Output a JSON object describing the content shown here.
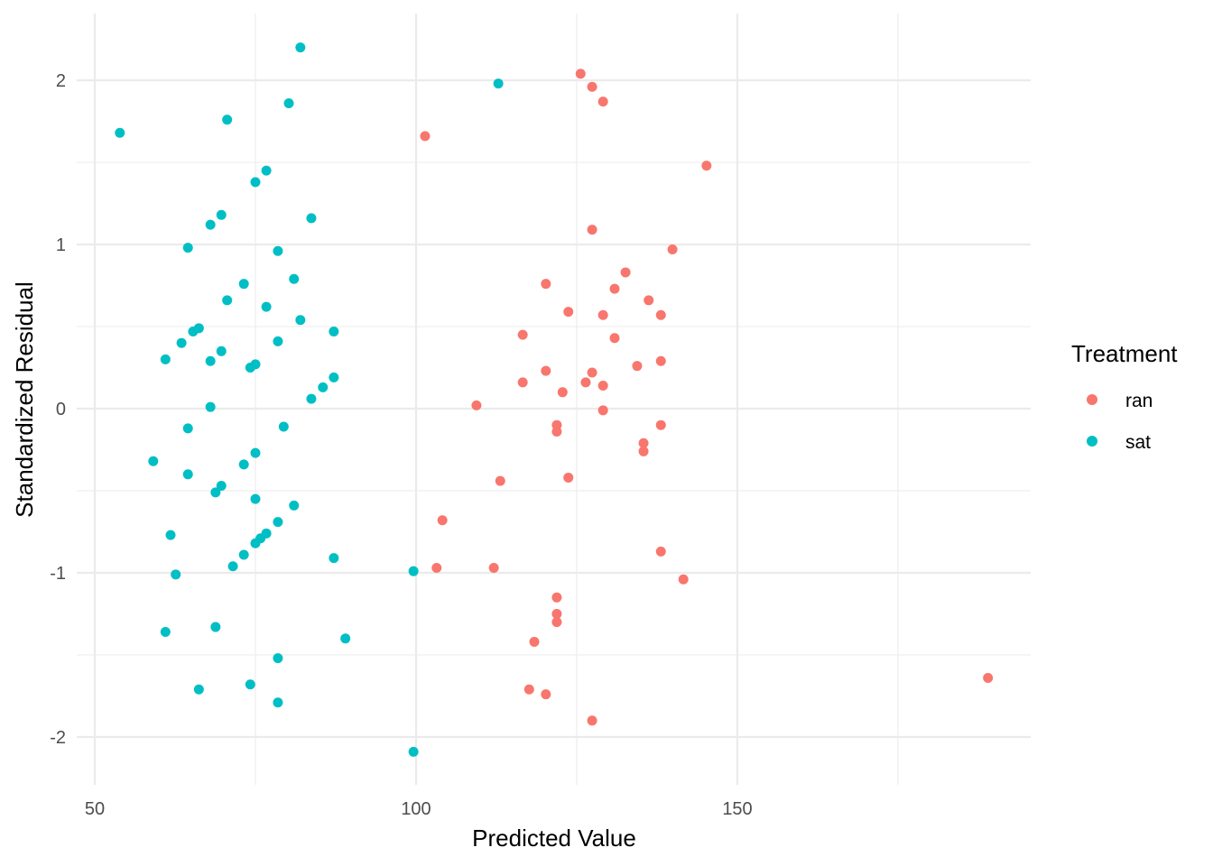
{
  "chart_data": {
    "type": "scatter",
    "title": "",
    "xlabel": "Predicted Value",
    "ylabel": "Standardized Residual",
    "xlim": [
      46,
      194.5
    ],
    "ylim": [
      -2.3,
      2.4
    ],
    "x_ticks": [
      50,
      100,
      150
    ],
    "x_tick_labels": [
      "50",
      "100",
      "150"
    ],
    "y_ticks": [
      -2,
      -1,
      0,
      1,
      2
    ],
    "y_tick_labels": [
      "-2",
      "-1",
      "0",
      "1",
      "2"
    ],
    "grid": true,
    "legend": {
      "title": "Treatment",
      "placement": "right"
    },
    "series": [
      {
        "name": "ran",
        "color": "#F8766D",
        "points": [
          [
            125.6,
            2.04
          ],
          [
            127.4,
            1.96
          ],
          [
            129.1,
            1.87
          ],
          [
            101.4,
            1.66
          ],
          [
            145.2,
            1.48
          ],
          [
            127.4,
            1.09
          ],
          [
            139.9,
            0.97
          ],
          [
            132.6,
            0.83
          ],
          [
            120.2,
            0.76
          ],
          [
            130.9,
            0.73
          ],
          [
            136.2,
            0.66
          ],
          [
            123.7,
            0.59
          ],
          [
            129.1,
            0.57
          ],
          [
            138.1,
            0.57
          ],
          [
            116.6,
            0.45
          ],
          [
            130.9,
            0.43
          ],
          [
            138.1,
            0.29
          ],
          [
            134.4,
            0.26
          ],
          [
            120.2,
            0.23
          ],
          [
            127.4,
            0.22
          ],
          [
            126.4,
            0.16
          ],
          [
            116.6,
            0.16
          ],
          [
            129.1,
            0.14
          ],
          [
            122.8,
            0.1
          ],
          [
            109.4,
            0.02
          ],
          [
            129.1,
            -0.01
          ],
          [
            121.9,
            -0.1
          ],
          [
            138.1,
            -0.1
          ],
          [
            121.9,
            -0.14
          ],
          [
            135.4,
            -0.21
          ],
          [
            135.4,
            -0.26
          ],
          [
            123.7,
            -0.42
          ],
          [
            113.1,
            -0.44
          ],
          [
            104.1,
            -0.68
          ],
          [
            138.1,
            -0.87
          ],
          [
            103.2,
            -0.97
          ],
          [
            112.1,
            -0.97
          ],
          [
            141.6,
            -1.04
          ],
          [
            121.9,
            -1.15
          ],
          [
            121.9,
            -1.25
          ],
          [
            121.9,
            -1.3
          ],
          [
            118.4,
            -1.42
          ],
          [
            117.6,
            -1.71
          ],
          [
            120.2,
            -1.74
          ],
          [
            127.4,
            -1.9
          ],
          [
            189.0,
            -1.64
          ]
        ]
      },
      {
        "name": "sat",
        "color": "#00BFC4",
        "points": [
          [
            82.0,
            2.2
          ],
          [
            112.8,
            1.98
          ],
          [
            53.9,
            1.68
          ],
          [
            70.6,
            1.76
          ],
          [
            80.2,
            1.86
          ],
          [
            76.7,
            1.45
          ],
          [
            75.0,
            1.38
          ],
          [
            69.7,
            1.18
          ],
          [
            68.0,
            1.12
          ],
          [
            83.7,
            1.16
          ],
          [
            64.5,
            0.98
          ],
          [
            78.5,
            0.96
          ],
          [
            73.2,
            0.76
          ],
          [
            81.0,
            0.79
          ],
          [
            70.6,
            0.66
          ],
          [
            76.7,
            0.62
          ],
          [
            82.0,
            0.54
          ],
          [
            66.2,
            0.49
          ],
          [
            65.3,
            0.47
          ],
          [
            87.2,
            0.47
          ],
          [
            63.5,
            0.4
          ],
          [
            78.5,
            0.41
          ],
          [
            69.7,
            0.35
          ],
          [
            61.0,
            0.3
          ],
          [
            68.0,
            0.29
          ],
          [
            75.0,
            0.27
          ],
          [
            74.2,
            0.25
          ],
          [
            87.2,
            0.19
          ],
          [
            85.5,
            0.13
          ],
          [
            83.7,
            0.06
          ],
          [
            68.0,
            0.01
          ],
          [
            79.4,
            -0.11
          ],
          [
            64.5,
            -0.12
          ],
          [
            75.0,
            -0.27
          ],
          [
            59.1,
            -0.32
          ],
          [
            73.2,
            -0.34
          ],
          [
            64.5,
            -0.4
          ],
          [
            69.7,
            -0.47
          ],
          [
            68.8,
            -0.51
          ],
          [
            75.0,
            -0.55
          ],
          [
            81.0,
            -0.59
          ],
          [
            78.5,
            -0.69
          ],
          [
            61.8,
            -0.77
          ],
          [
            76.7,
            -0.76
          ],
          [
            75.8,
            -0.79
          ],
          [
            75.0,
            -0.82
          ],
          [
            73.2,
            -0.89
          ],
          [
            87.2,
            -0.91
          ],
          [
            71.5,
            -0.96
          ],
          [
            99.6,
            -0.99
          ],
          [
            62.6,
            -1.01
          ],
          [
            68.8,
            -1.33
          ],
          [
            61.0,
            -1.36
          ],
          [
            89.0,
            -1.4
          ],
          [
            78.5,
            -1.52
          ],
          [
            74.2,
            -1.68
          ],
          [
            66.2,
            -1.71
          ],
          [
            78.5,
            -1.79
          ],
          [
            99.6,
            -2.09
          ]
        ]
      }
    ]
  }
}
